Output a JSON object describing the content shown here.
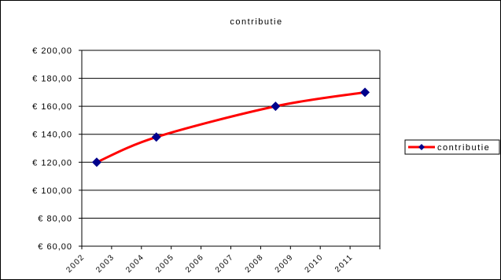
{
  "chart_data": {
    "type": "line",
    "title": "contributie",
    "xlabel": "",
    "ylabel": "",
    "x_ticks": [
      "2002",
      "2003",
      "2004",
      "2005",
      "2006",
      "2007",
      "2008",
      "2009",
      "2010",
      "2011"
    ],
    "ylim": [
      60,
      200
    ],
    "y_ticks": [
      {
        "value": 60,
        "label": "€ 60,00"
      },
      {
        "value": 80,
        "label": "€ 80,00"
      },
      {
        "value": 100,
        "label": "€ 100,00"
      },
      {
        "value": 120,
        "label": "€ 120,00"
      },
      {
        "value": 140,
        "label": "€ 140,00"
      },
      {
        "value": 160,
        "label": "€ 160,00"
      },
      {
        "value": 180,
        "label": "€ 180,00"
      },
      {
        "value": 200,
        "label": "€ 200,00"
      }
    ],
    "grid": true,
    "legend_position": "right",
    "series": [
      {
        "name": "contributie",
        "line_color": "#ff0000",
        "marker_color": "#00008b",
        "points": [
          {
            "x": 2002.5,
            "y": 120
          },
          {
            "x": 2004.5,
            "y": 138
          },
          {
            "x": 2008.5,
            "y": 160
          },
          {
            "x": 2011.5,
            "y": 170
          }
        ]
      }
    ]
  }
}
